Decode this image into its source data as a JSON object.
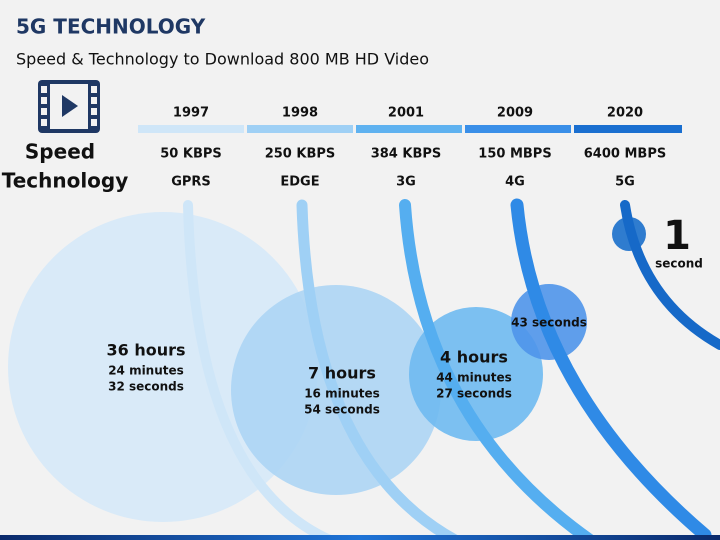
{
  "header": {
    "title": "5G TECHNOLOGY",
    "subtitle": "Speed & Technology to Download 800 MB HD Video"
  },
  "row_labels": {
    "speed": "Speed",
    "technology": "Technology"
  },
  "columns": [
    {
      "year": "1997",
      "speed": "50 KBPS",
      "technology": "GPRS",
      "time": {
        "main": "36 hours",
        "lines": [
          "24 minutes",
          "32 seconds"
        ]
      }
    },
    {
      "year": "1998",
      "speed": "250 KBPS",
      "technology": "EDGE",
      "time": {
        "main": "7 hours",
        "lines": [
          "16 minutes",
          "54 seconds"
        ]
      }
    },
    {
      "year": "2001",
      "speed": "384 KBPS",
      "technology": "3G",
      "time": {
        "main": "4 hours",
        "lines": [
          "44 minutes",
          "27 seconds"
        ]
      }
    },
    {
      "year": "2009",
      "speed": "150 MBPS",
      "technology": "4G",
      "time": {
        "main": "43 seconds",
        "lines": []
      }
    },
    {
      "year": "2020",
      "speed": "6400 MBPS",
      "technology": "5G",
      "time": {
        "main": "1",
        "lines": [
          "second"
        ]
      }
    }
  ]
}
